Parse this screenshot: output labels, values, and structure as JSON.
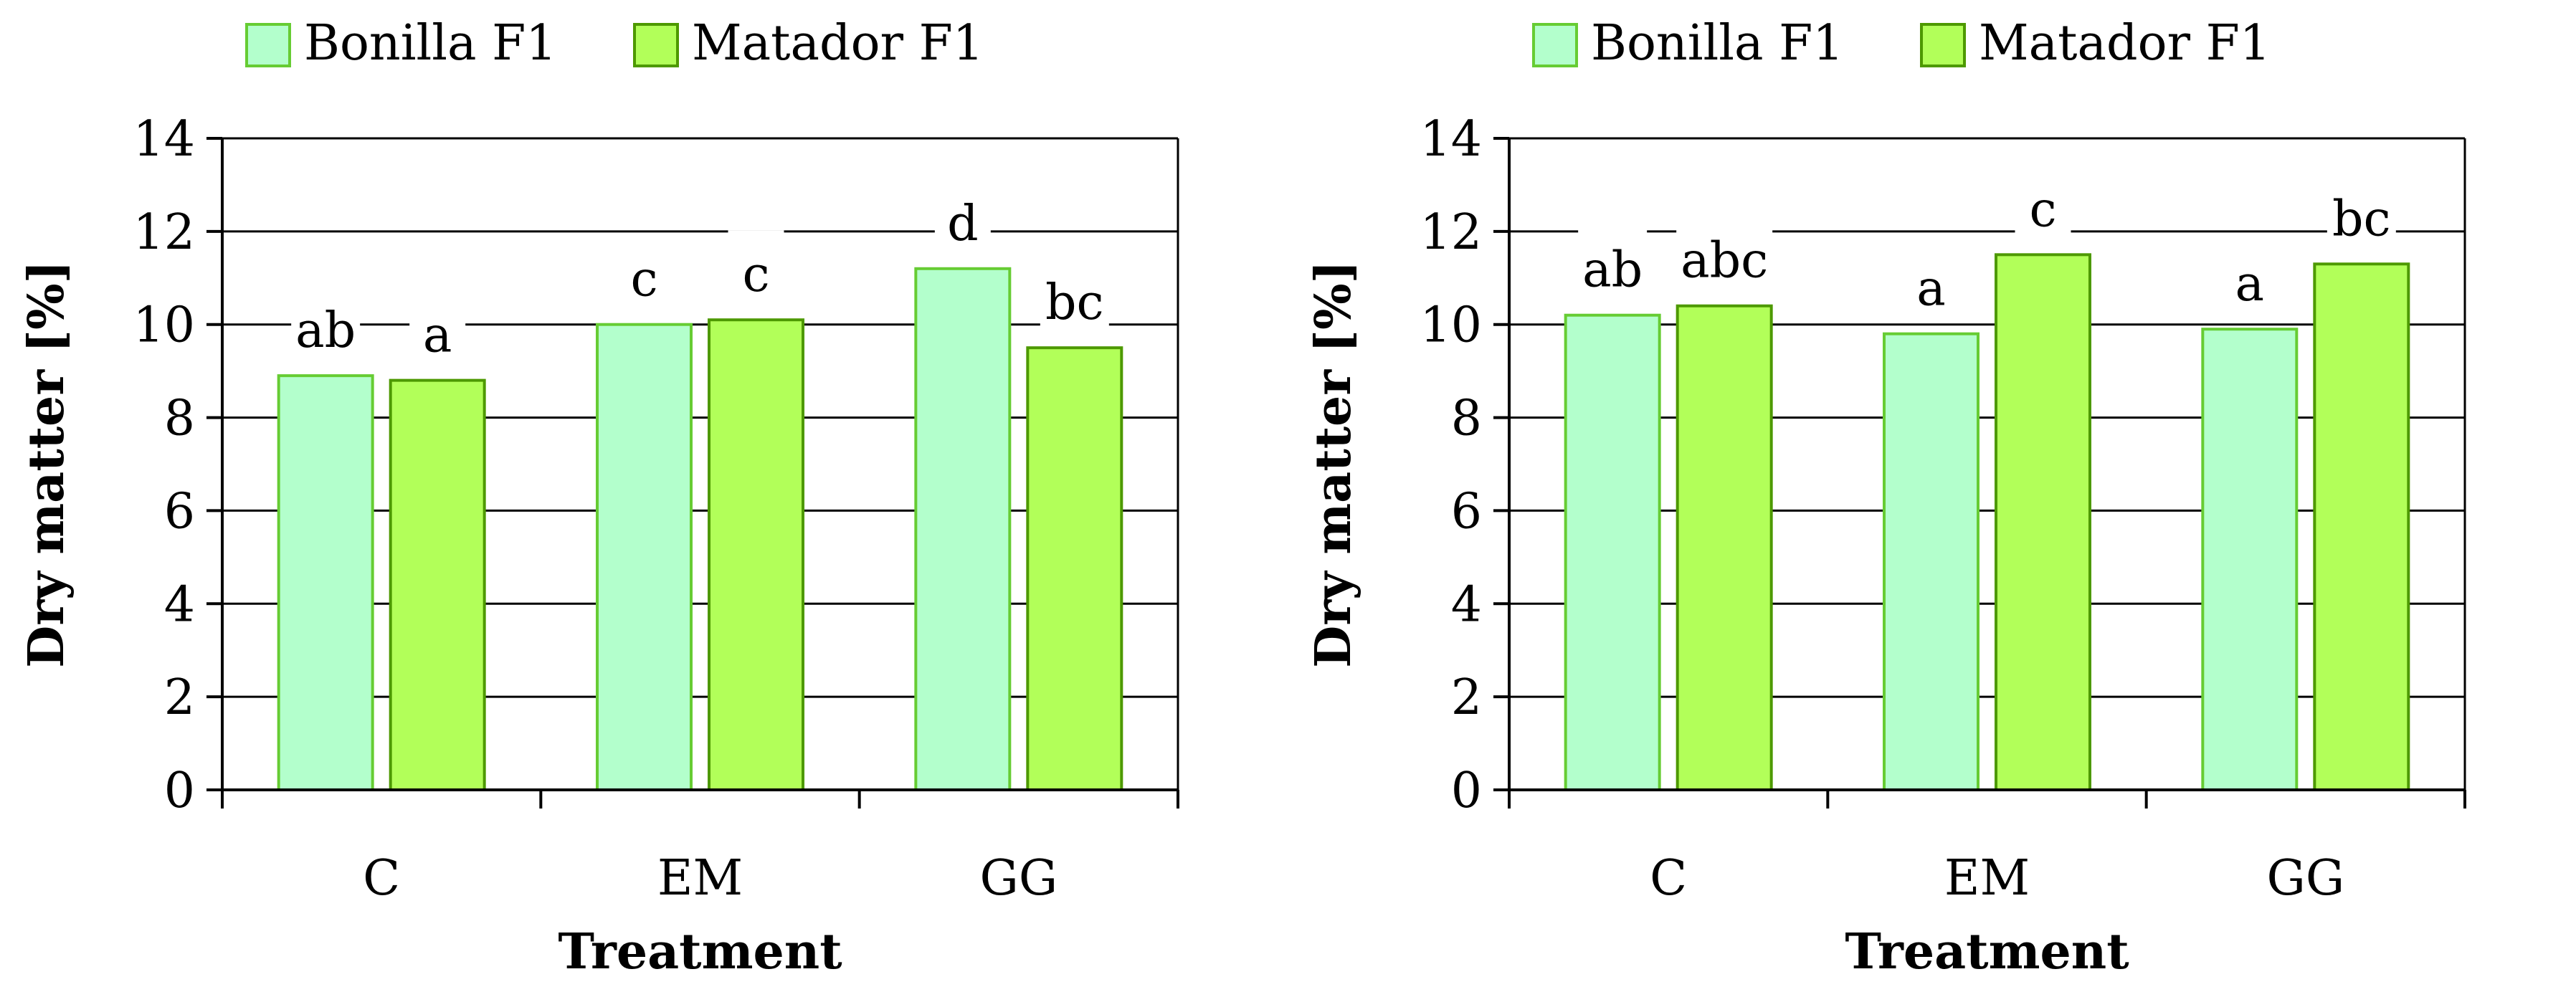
{
  "colors": {
    "bonilla_fill": "#b3ffcc",
    "bonilla_stroke": "#66cc33",
    "matador_fill": "#b2ff59",
    "matador_stroke": "#4d9900",
    "grid": "#000000",
    "label_bg": "#ffffff"
  },
  "chart_data": [
    {
      "type": "bar",
      "title": "",
      "xlabel": "Treatment",
      "ylabel": "Dry matter [%]",
      "ylim": [
        0,
        14
      ],
      "yticks": [
        0,
        2,
        4,
        6,
        8,
        10,
        12,
        14
      ],
      "grid": true,
      "legend_position": "top",
      "categories": [
        "C",
        "EM",
        "GG"
      ],
      "series": [
        {
          "name": "Bonilla F1",
          "color_key": "bonilla",
          "values": [
            8.9,
            10.0,
            11.2
          ],
          "labels": [
            "ab",
            "c",
            "d"
          ]
        },
        {
          "name": "Matador F1",
          "color_key": "matador",
          "values": [
            8.8,
            10.1,
            9.5
          ],
          "labels": [
            "a",
            "c",
            "bc"
          ]
        }
      ]
    },
    {
      "type": "bar",
      "title": "",
      "xlabel": "Treatment",
      "ylabel": "Dry matter [%]",
      "ylim": [
        0,
        14
      ],
      "yticks": [
        0,
        2,
        4,
        6,
        8,
        10,
        12,
        14
      ],
      "grid": true,
      "legend_position": "top",
      "categories": [
        "C",
        "EM",
        "GG"
      ],
      "series": [
        {
          "name": "Bonilla F1",
          "color_key": "bonilla",
          "values": [
            10.2,
            9.8,
            9.9
          ],
          "labels": [
            "ab",
            "a",
            "a"
          ]
        },
        {
          "name": "Matador F1",
          "color_key": "matador",
          "values": [
            10.4,
            11.5,
            11.3
          ],
          "labels": [
            "abc",
            "c",
            "bc"
          ]
        }
      ]
    }
  ]
}
